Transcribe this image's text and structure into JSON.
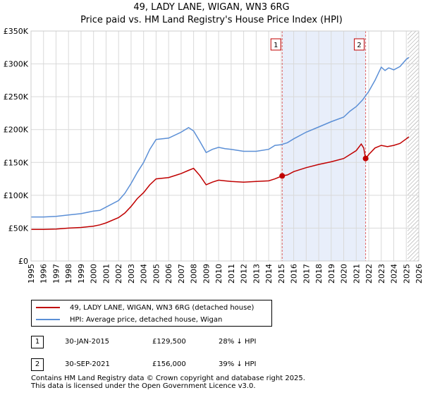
{
  "chart_data": {
    "type": "line",
    "title": "49, LADY LANE, WIGAN, WN3 6RG",
    "subtitle": "Price paid vs. HM Land Registry's House Price Index (HPI)",
    "xlabel": "",
    "ylabel": "",
    "xlim": [
      1995,
      2026
    ],
    "ylim": [
      0,
      350000
    ],
    "x_ticks": [
      "1995",
      "1996",
      "1997",
      "1998",
      "1999",
      "2000",
      "2001",
      "2002",
      "2003",
      "2004",
      "2005",
      "2006",
      "2007",
      "2008",
      "2009",
      "2010",
      "2011",
      "2012",
      "2013",
      "2014",
      "2015",
      "2016",
      "2017",
      "2018",
      "2019",
      "2020",
      "2021",
      "2022",
      "2023",
      "2024",
      "2025",
      "2026"
    ],
    "y_ticks": [
      {
        "value": 0,
        "label": "£0"
      },
      {
        "value": 50000,
        "label": "£50K"
      },
      {
        "value": 100000,
        "label": "£100K"
      },
      {
        "value": 150000,
        "label": "£150K"
      },
      {
        "value": 200000,
        "label": "£200K"
      },
      {
        "value": 250000,
        "label": "£250K"
      },
      {
        "value": 300000,
        "label": "£300K"
      },
      {
        "value": 350000,
        "label": "£350K"
      }
    ],
    "grid": true,
    "shaded_range": [
      2015.08,
      2021.75
    ],
    "future_hatch_from": 2025.1,
    "series": [
      {
        "name": "HPI: Average price, detached house, Wigan",
        "color": "#5b8fd6",
        "x": [
          1995,
          1996,
          1997,
          1998,
          1999,
          2000,
          2000.5,
          2001,
          2002,
          2002.5,
          2003,
          2003.5,
          2004,
          2004.5,
          2005,
          2006,
          2007,
          2007.6,
          2008,
          2008.5,
          2009,
          2009.5,
          2010,
          2010.5,
          2011,
          2012,
          2013,
          2014,
          2014.5,
          2015,
          2015.5,
          2016,
          2017,
          2018,
          2019,
          2020,
          2020.5,
          2021,
          2021.5,
          2022,
          2022.5,
          2023,
          2023.3,
          2023.6,
          2024,
          2024.5,
          2025,
          2025.2
        ],
        "y": [
          67000,
          67000,
          68000,
          70000,
          72000,
          76000,
          77000,
          82000,
          92000,
          103000,
          118000,
          135000,
          150000,
          170000,
          185000,
          187000,
          196000,
          203000,
          198000,
          182000,
          165000,
          170000,
          173000,
          171000,
          170000,
          167000,
          167000,
          170000,
          176000,
          177000,
          180000,
          186000,
          196000,
          204000,
          212000,
          219000,
          228000,
          235000,
          245000,
          258000,
          275000,
          295000,
          290000,
          294000,
          291000,
          296000,
          307000,
          310000
        ]
      },
      {
        "name": "49, LADY LANE, WIGAN, WN3 6RG (detached house)",
        "color": "#c00000",
        "x": [
          1995,
          1996,
          1997,
          1998,
          1999,
          2000,
          2000.5,
          2001,
          2002,
          2002.5,
          2003,
          2003.5,
          2004,
          2004.5,
          2005,
          2006,
          2007,
          2007.6,
          2008,
          2008.5,
          2009,
          2009.5,
          2010,
          2010.5,
          2011,
          2012,
          2013,
          2014,
          2014.5,
          2015.08,
          2015.5,
          2016,
          2017,
          2018,
          2019,
          2020,
          2020.5,
          2021,
          2021.4,
          2021.6,
          2021.75,
          2022,
          2022.5,
          2023,
          2023.5,
          2024,
          2024.5,
          2025,
          2025.2
        ],
        "y": [
          48000,
          48000,
          48500,
          50000,
          51000,
          53000,
          55000,
          58000,
          66000,
          73000,
          83000,
          95000,
          104000,
          116000,
          125000,
          127000,
          133000,
          138000,
          141000,
          130000,
          116000,
          120000,
          123000,
          122000,
          121000,
          120000,
          121000,
          122000,
          125000,
          129500,
          131000,
          136000,
          142000,
          147000,
          151000,
          156000,
          162000,
          168000,
          178000,
          172000,
          156000,
          162000,
          172000,
          176000,
          174000,
          176000,
          179000,
          186000,
          189000
        ]
      }
    ],
    "markers": [
      {
        "label": "1",
        "x": 2015.08,
        "y": 129500
      },
      {
        "label": "2",
        "x": 2021.75,
        "y": 156000
      }
    ]
  },
  "legend": {
    "property_label": "49, LADY LANE, WIGAN, WN3 6RG (detached house)",
    "hpi_label": "HPI: Average price, detached house, Wigan",
    "property_color": "#c00000",
    "hpi_color": "#5b8fd6"
  },
  "transactions": [
    {
      "num": "1",
      "date": "30-JAN-2015",
      "price": "£129,500",
      "hpi": "28% ↓ HPI"
    },
    {
      "num": "2",
      "date": "30-SEP-2021",
      "price": "£156,000",
      "hpi": "39% ↓ HPI"
    }
  ],
  "footer": {
    "line1": "Contains HM Land Registry data © Crown copyright and database right 2025.",
    "line2": "This data is licensed under the Open Government Licence v3.0."
  }
}
